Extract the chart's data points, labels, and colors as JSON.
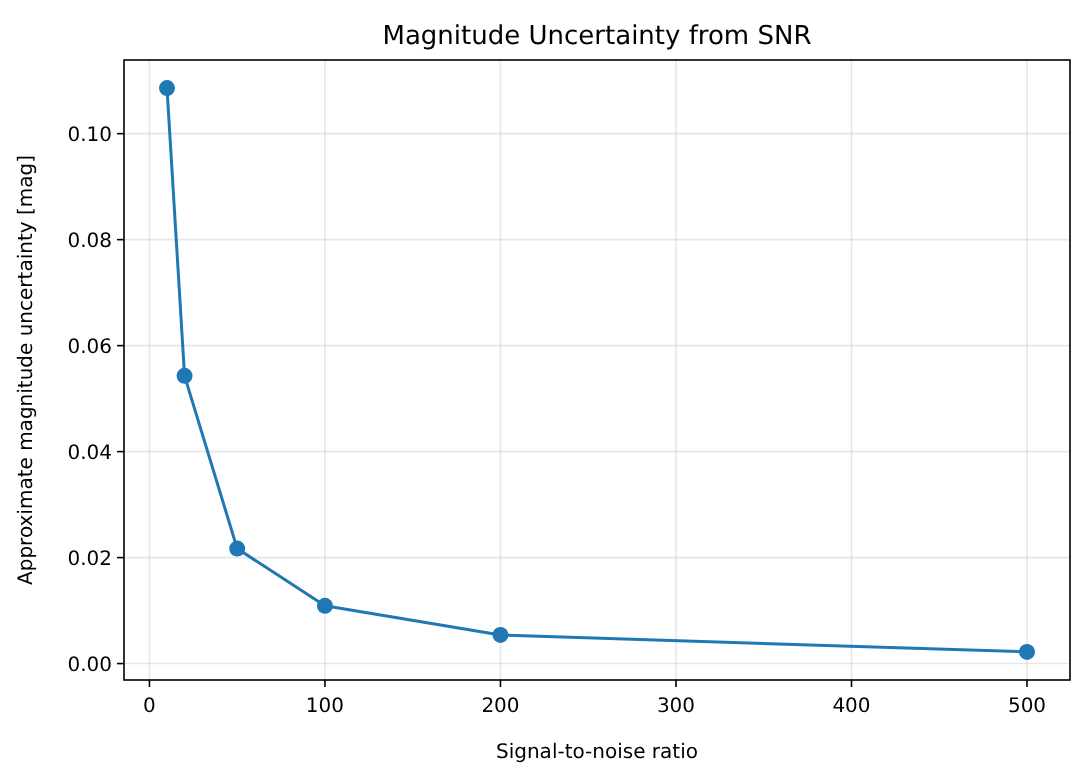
{
  "chart_data": {
    "type": "line",
    "title": "Magnitude Uncertainty from SNR",
    "xlabel": "Signal-to-noise ratio",
    "ylabel": "Approximate magnitude uncertainty [mag]",
    "x": [
      10,
      20,
      50,
      100,
      200,
      500
    ],
    "series": [
      {
        "color": "#1f77b4",
        "values": [
          0.1086,
          0.0543,
          0.0217,
          0.0109,
          0.0054,
          0.0022
        ]
      }
    ],
    "xlim": [
      -14.5,
      524.5
    ],
    "ylim": [
      -0.0031,
      0.1139
    ],
    "xticks": [
      0,
      100,
      200,
      300,
      400,
      500
    ],
    "yticks": [
      {
        "value": 0,
        "label": "0.00"
      },
      {
        "value": 0.02,
        "label": "0.02"
      },
      {
        "value": 0.04,
        "label": "0.04"
      },
      {
        "value": 0.06,
        "label": "0.06"
      },
      {
        "value": 0.08,
        "label": "0.08"
      },
      {
        "value": 0.1,
        "label": "0.10"
      }
    ],
    "grid": true,
    "marker": "circle",
    "line_style": "solid"
  }
}
